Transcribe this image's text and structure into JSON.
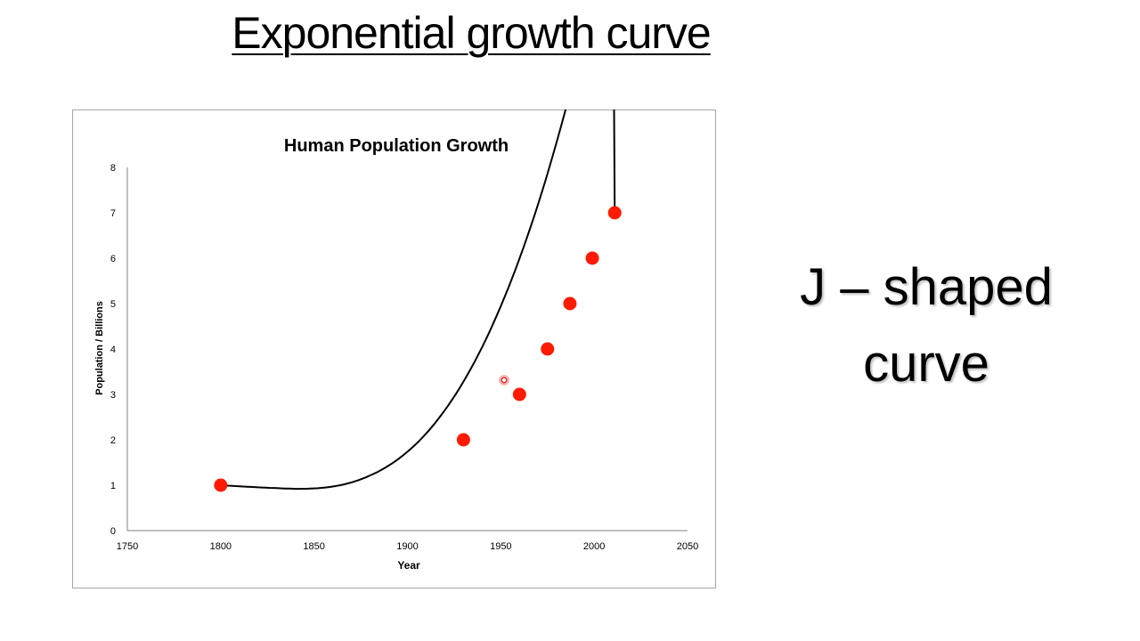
{
  "slide": {
    "title": "Exponential growth curve",
    "side_note_line1": "J – shaped",
    "side_note_line2": "curve"
  },
  "colors": {
    "point": "#ff1a00",
    "curve": "#000000",
    "axis": "#808080"
  },
  "chart_data": {
    "type": "scatter",
    "title": "Human Population Growth",
    "xlabel": "Year",
    "ylabel": "Population / Billions",
    "xlim": [
      1750,
      2050
    ],
    "ylim": [
      0,
      8
    ],
    "xticks": [
      "1750",
      "1800",
      "1850",
      "1900",
      "1950",
      "2000",
      "2050"
    ],
    "yticks": [
      "0",
      "1",
      "2",
      "3",
      "4",
      "5",
      "6",
      "7",
      "8"
    ],
    "grid": false,
    "legend": "none",
    "series": [
      {
        "points": [
          {
            "x": 1800,
            "y": 1
          },
          {
            "x": 1930,
            "y": 2
          },
          {
            "x": 1960,
            "y": 3
          },
          {
            "x": 1975,
            "y": 4
          },
          {
            "x": 1987,
            "y": 5
          },
          {
            "x": 1999,
            "y": 6
          },
          {
            "x": 2011,
            "y": 7
          }
        ]
      }
    ],
    "trendline": "smooth-curve"
  }
}
